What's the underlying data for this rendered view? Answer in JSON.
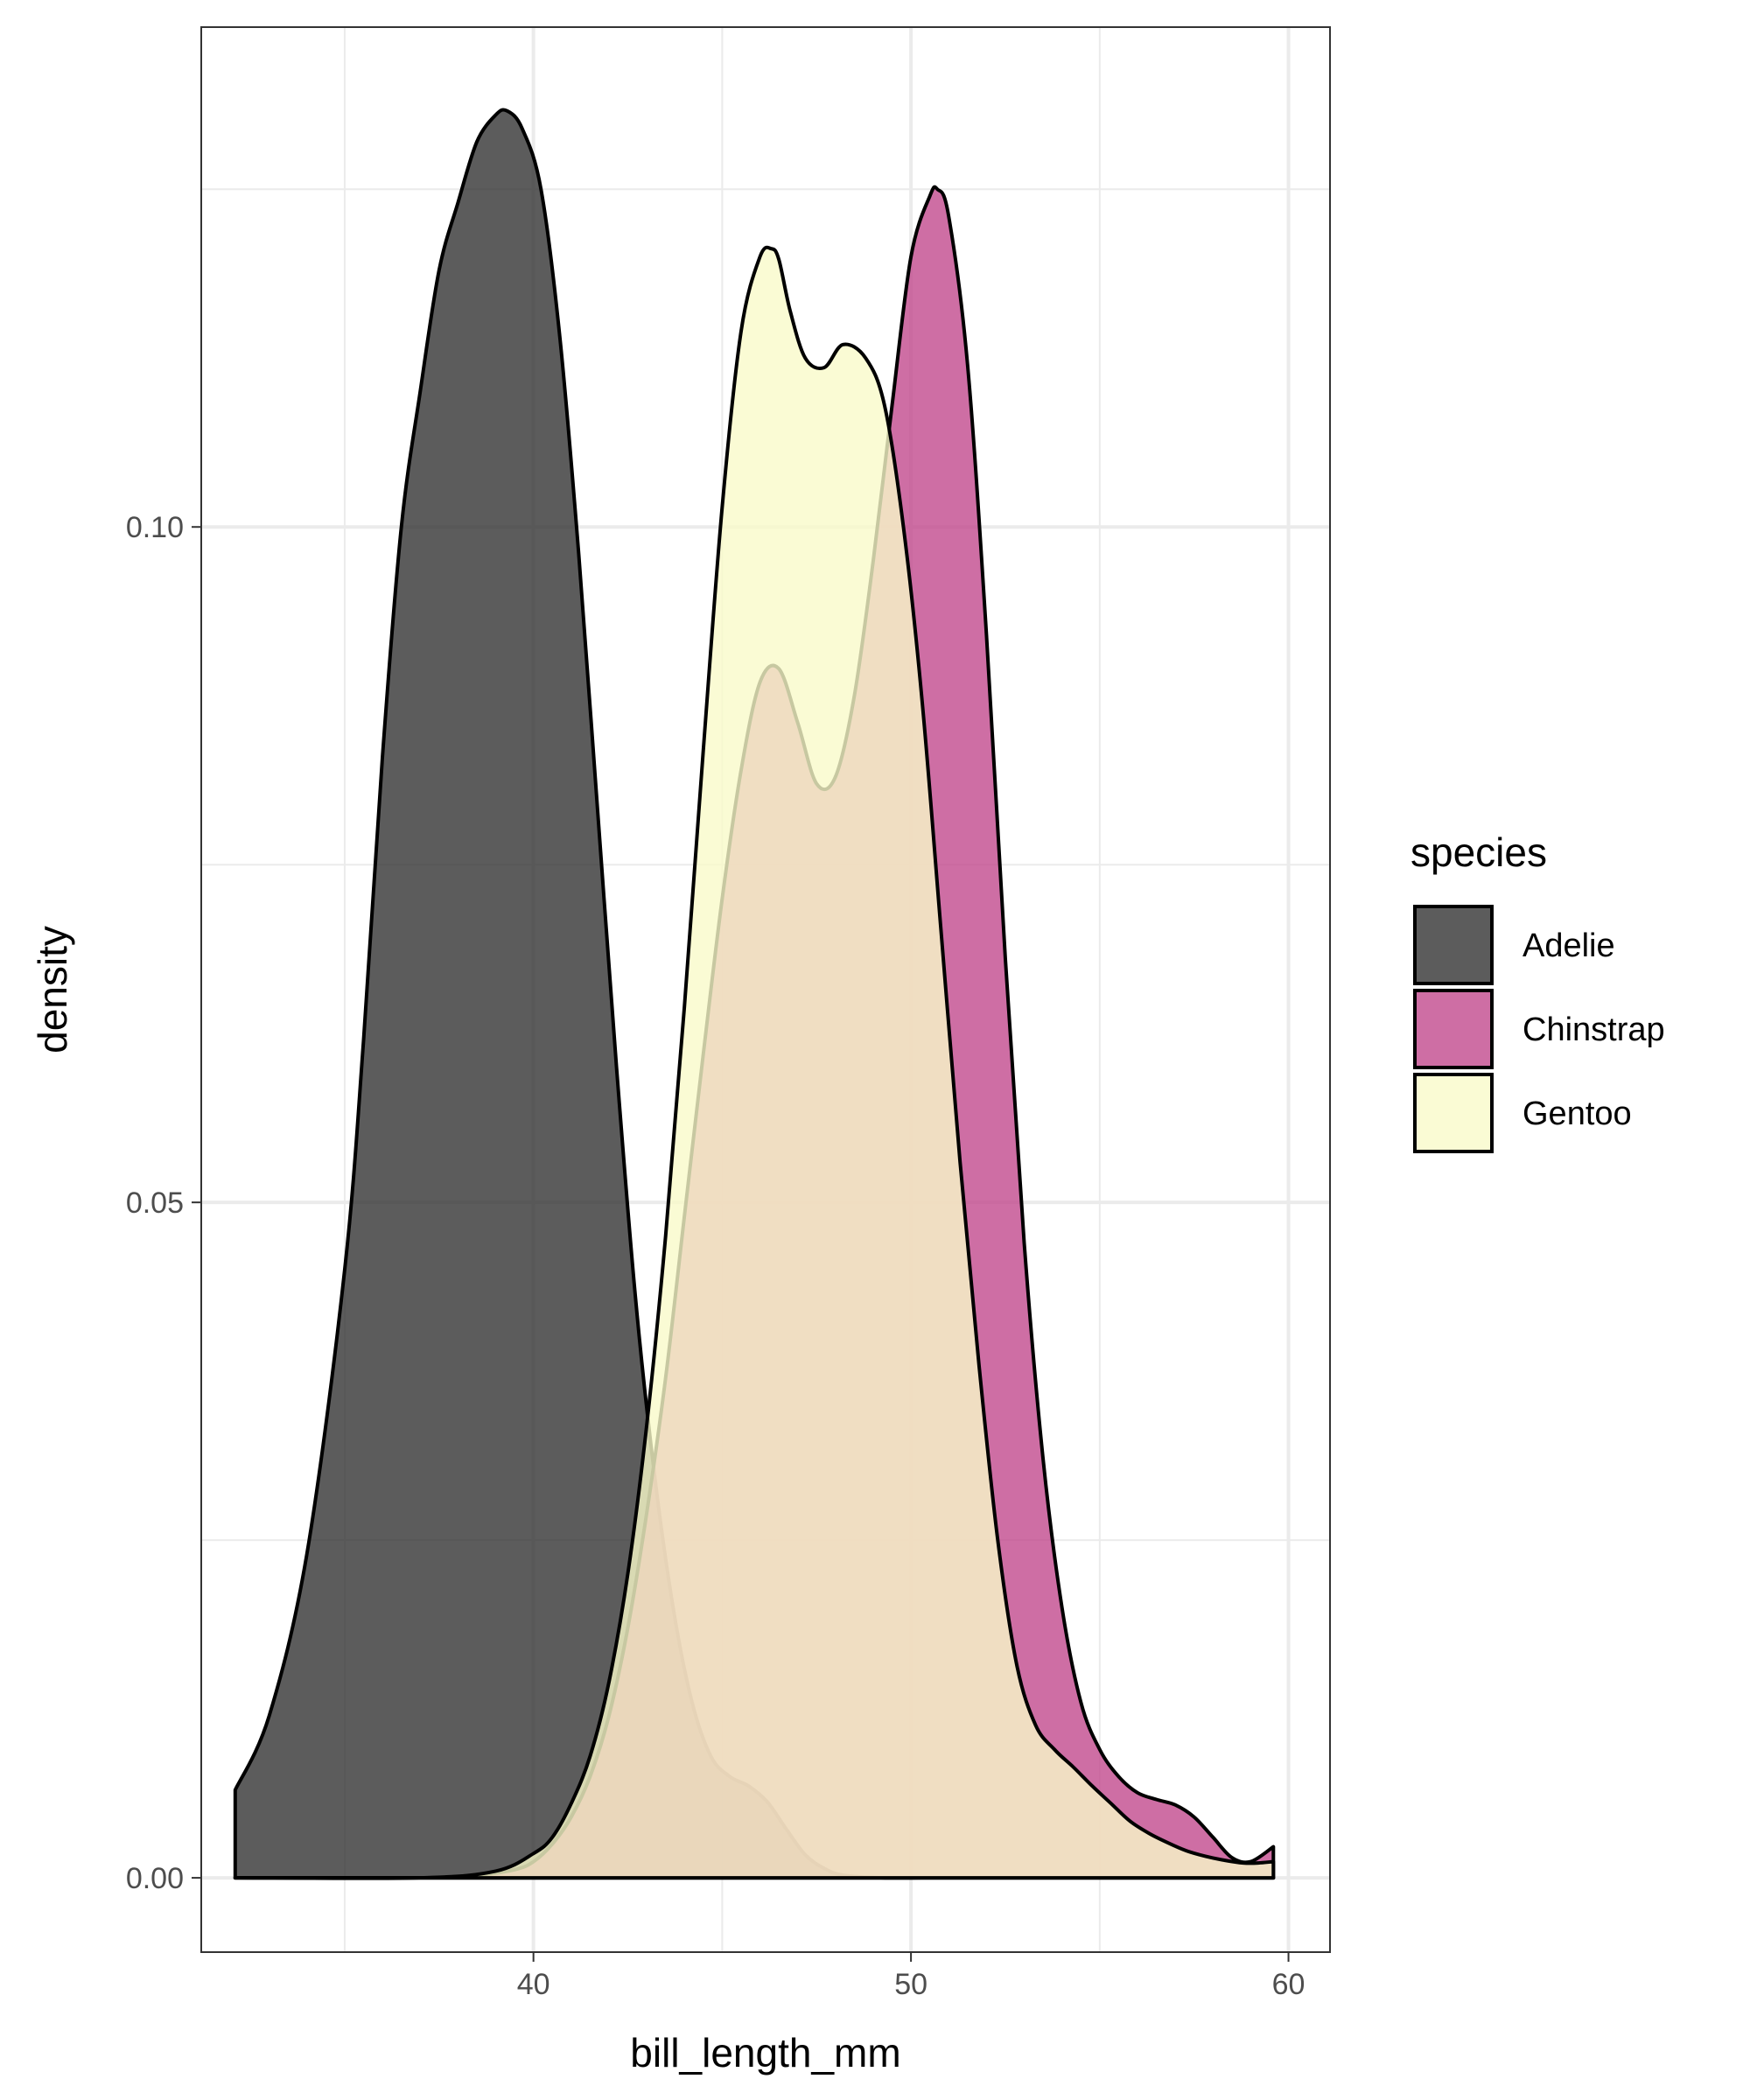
{
  "chart_data": {
    "type": "area",
    "title": "",
    "xlabel": "bill_length_mm",
    "ylabel": "density",
    "xlim": [
      31.2,
      61.1
    ],
    "ylim": [
      -0.0055,
      0.137
    ],
    "x_ticks": [
      40,
      50,
      60
    ],
    "x_tick_labels": [
      "40",
      "50",
      "60"
    ],
    "y_ticks": [
      0.0,
      0.05,
      0.1
    ],
    "y_tick_labels": [
      "0.00",
      "0.05",
      "0.10"
    ],
    "grid": true,
    "legend": {
      "title": "species",
      "position": "right"
    },
    "colors": {
      "Adelie": "#333333",
      "Chinstrap": "#C24A8D",
      "Gentoo": "#F9FAC9",
      "outline": "#000000",
      "panel_border": "#333333",
      "grid": "#EBEBEB"
    },
    "series": [
      {
        "name": "Adelie",
        "x": [
          32.1,
          33,
          34,
          35,
          35.5,
          36,
          36.5,
          37,
          37.5,
          38,
          38.5,
          39,
          39.3,
          39.7,
          40.2,
          40.7,
          41.2,
          41.7,
          42.2,
          42.7,
          43.2,
          43.7,
          44.2,
          44.7,
          45.2,
          45.7,
          46.2,
          46.7,
          47.2,
          47.7,
          48.2,
          49.2,
          50.3,
          52,
          55,
          59.6
        ],
        "y": [
          0.0065,
          0.012,
          0.024,
          0.045,
          0.062,
          0.083,
          0.1,
          0.11,
          0.119,
          0.124,
          0.1285,
          0.1305,
          0.1308,
          0.1295,
          0.125,
          0.114,
          0.098,
          0.079,
          0.06,
          0.043,
          0.03,
          0.02,
          0.013,
          0.009,
          0.0075,
          0.0068,
          0.0056,
          0.0036,
          0.0017,
          0.0007,
          0.0002,
          0.0,
          0.0,
          0.0,
          0.0,
          0.0
        ]
      },
      {
        "name": "Chinstrap",
        "x": [
          32.1,
          37,
          38.5,
          39.5,
          40,
          40.5,
          41,
          41.5,
          42,
          42.5,
          43,
          43.5,
          44,
          44.5,
          45,
          45.5,
          46,
          46.5,
          47,
          47.5,
          48,
          48.5,
          49,
          49.5,
          50,
          50.5,
          50.7,
          51,
          51.5,
          52,
          52.5,
          53,
          53.5,
          54,
          54.5,
          55,
          55.5,
          56,
          56.5,
          57,
          57.5,
          58,
          58.5,
          59,
          59.6
        ],
        "y": [
          0.0,
          0.0,
          0.0002,
          0.0006,
          0.0012,
          0.0025,
          0.0045,
          0.0075,
          0.012,
          0.0185,
          0.027,
          0.037,
          0.049,
          0.061,
          0.0725,
          0.082,
          0.0885,
          0.0895,
          0.0855,
          0.081,
          0.0815,
          0.0875,
          0.0975,
          0.109,
          0.12,
          0.1245,
          0.125,
          0.123,
          0.112,
          0.092,
          0.068,
          0.047,
          0.031,
          0.02,
          0.013,
          0.0095,
          0.0075,
          0.0063,
          0.0058,
          0.0054,
          0.0045,
          0.003,
          0.0015,
          0.0012,
          0.0023
        ]
      },
      {
        "name": "Gentoo",
        "x": [
          32.1,
          37,
          39,
          40,
          40.5,
          41,
          41.5,
          42,
          42.5,
          43,
          43.5,
          44,
          44.5,
          45,
          45.5,
          46,
          46.3,
          46.5,
          46.8,
          47.2,
          47.7,
          48.2,
          48.8,
          49.3,
          49.8,
          50.3,
          50.8,
          51.3,
          51.8,
          52.3,
          52.8,
          53.3,
          53.8,
          54.3,
          54.8,
          55.3,
          55.8,
          56.3,
          56.8,
          57.3,
          57.8,
          58.3,
          58.8,
          59.2,
          59.6
        ],
        "y": [
          0.0,
          0.0,
          0.0005,
          0.0018,
          0.003,
          0.0055,
          0.009,
          0.0145,
          0.0225,
          0.0335,
          0.0475,
          0.0645,
          0.0835,
          0.1015,
          0.1145,
          0.12,
          0.1206,
          0.1198,
          0.116,
          0.1125,
          0.1118,
          0.1135,
          0.1125,
          0.109,
          0.1,
          0.087,
          0.07,
          0.053,
          0.038,
          0.025,
          0.0158,
          0.0113,
          0.0095,
          0.0082,
          0.0068,
          0.0055,
          0.0042,
          0.0033,
          0.0026,
          0.002,
          0.0016,
          0.0013,
          0.0011,
          0.0011,
          0.0012
        ]
      }
    ]
  }
}
